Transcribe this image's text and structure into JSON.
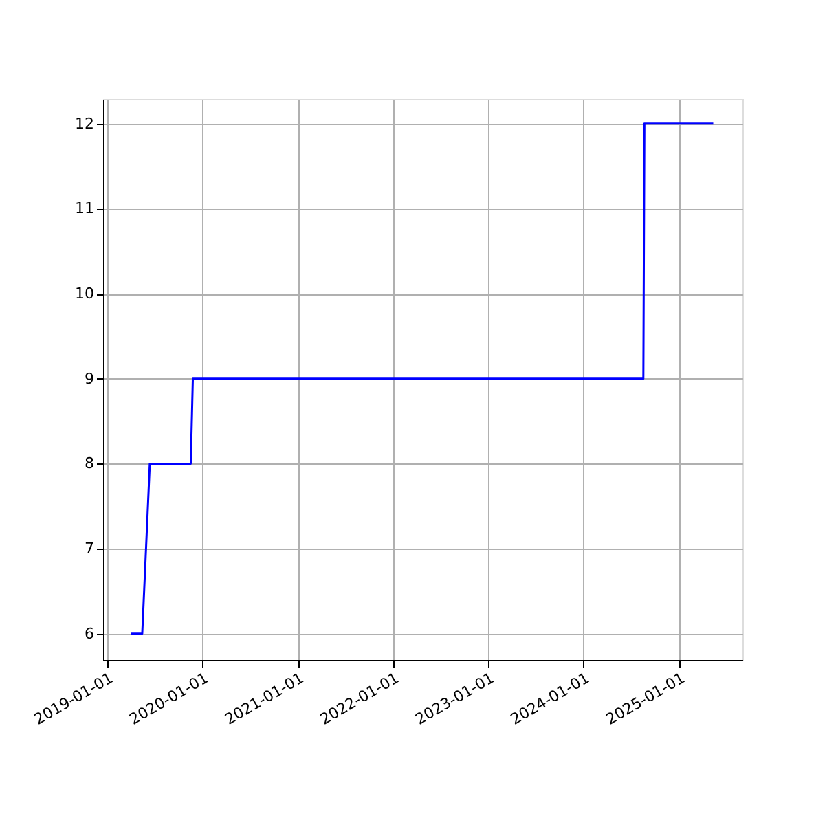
{
  "chart_data": {
    "type": "line",
    "x": [
      "2019-04-01",
      "2019-05-15",
      "2019-06-13",
      "2019-11-17",
      "2019-11-25",
      "2024-08-17",
      "2024-08-21",
      "2025-05-12"
    ],
    "series": [
      {
        "color": "#0000ff",
        "values": [
          6,
          6,
          8,
          8,
          9,
          9,
          12,
          12
        ]
      }
    ],
    "xlim": [
      "2018-12-16",
      "2025-09-01"
    ],
    "ylim": [
      5.69,
      12.29
    ],
    "xticks": [
      "2019-01-01",
      "2020-01-01",
      "2021-01-01",
      "2022-01-01",
      "2023-01-01",
      "2024-01-01",
      "2025-01-01"
    ],
    "yticks": [
      6,
      7,
      8,
      9,
      10,
      11,
      12
    ],
    "grid": true,
    "marker": "none",
    "line_style": "solid"
  }
}
